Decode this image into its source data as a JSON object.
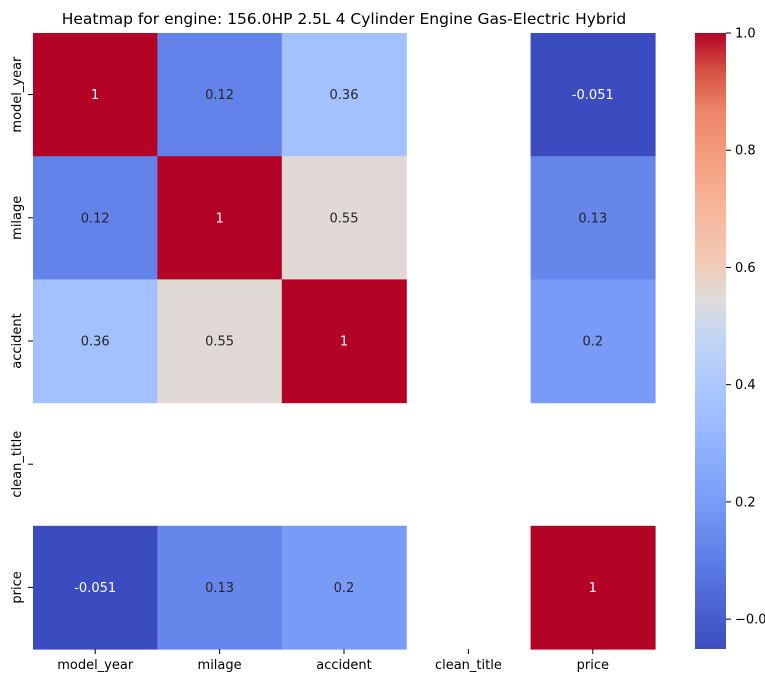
{
  "chart_data": {
    "type": "heatmap",
    "title": "Heatmap for engine: 156.0HP 2.5L 4 Cylinder Engine Gas-Electric Hybrid",
    "xlabel": "",
    "ylabel": "",
    "x_categories": [
      "model_year",
      "milage",
      "accident",
      "clean_title",
      "price"
    ],
    "y_categories": [
      "model_year",
      "milage",
      "accident",
      "clean_title",
      "price"
    ],
    "values": [
      [
        1,
        0.12,
        0.36,
        null,
        -0.051
      ],
      [
        0.12,
        1,
        0.55,
        null,
        0.13
      ],
      [
        0.36,
        0.55,
        1,
        null,
        0.2
      ],
      [
        null,
        null,
        null,
        null,
        null
      ],
      [
        -0.051,
        0.13,
        0.2,
        null,
        1
      ]
    ],
    "labels": [
      [
        "1",
        "0.12",
        "0.36",
        "",
        "-0.051"
      ],
      [
        "0.12",
        "1",
        "0.55",
        "",
        "0.13"
      ],
      [
        "0.36",
        "0.55",
        "1",
        "",
        "0.2"
      ],
      [
        "",
        "",
        "",
        "",
        ""
      ],
      [
        "-0.051",
        "0.13",
        "0.2",
        "",
        "1"
      ]
    ],
    "colormap": "coolwarm",
    "vmin": -0.051,
    "vmax": 1,
    "colorbar_ticks": [
      -0.0,
      0.2,
      0.4,
      0.6,
      0.8,
      1.0
    ],
    "colorbar_tick_labels": [
      "−0.0",
      "0.2",
      "0.4",
      "0.6",
      "0.8",
      "1.0"
    ]
  }
}
